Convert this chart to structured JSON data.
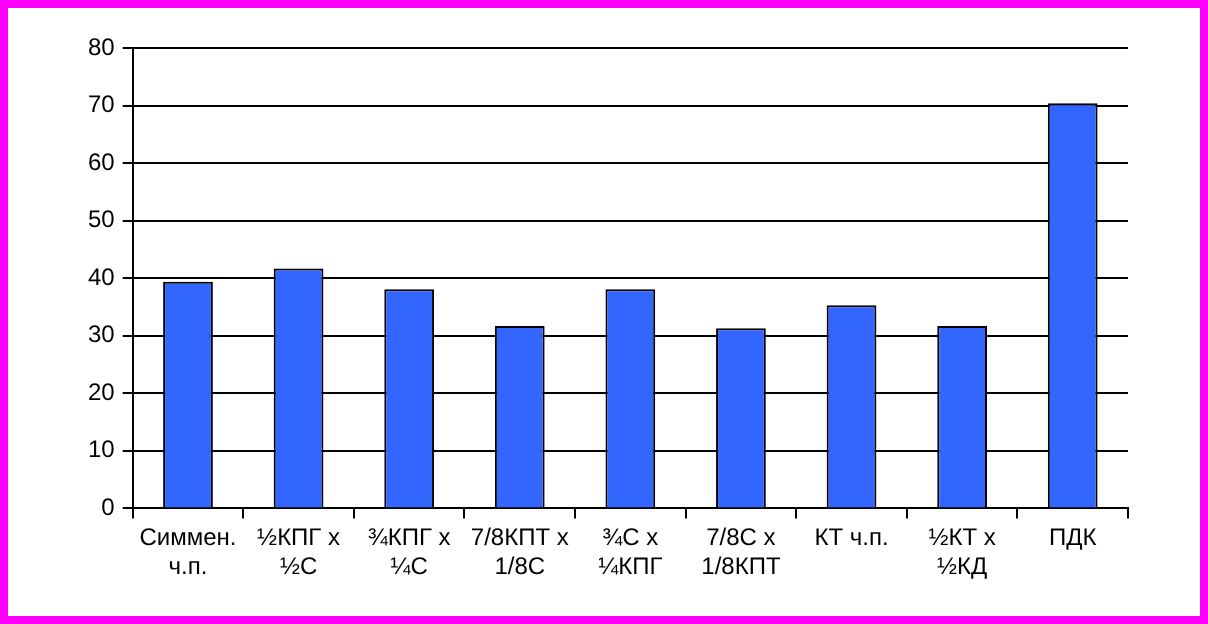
{
  "chart_data": {
    "type": "bar",
    "categories": [
      "Симмен.\nч.п.",
      "½КПГ x\n½С",
      "¾КПГ x\n¼С",
      "7/8КПТ x\n1/8С",
      "¾С x\n¼КПГ",
      "7/8С x\n1/8КПТ",
      "КТ ч.п.",
      "½КТ x\n½КД",
      "ПДК"
    ],
    "values": [
      39.4,
      41.7,
      38.1,
      31.7,
      38.1,
      31.3,
      35.3,
      31.7,
      70.4
    ],
    "color": "#3366ff",
    "ylim": [
      0,
      80
    ],
    "yticks": [
      0,
      10,
      20,
      30,
      40,
      50,
      60,
      70,
      80
    ],
    "grid": "y",
    "legend": false
  }
}
